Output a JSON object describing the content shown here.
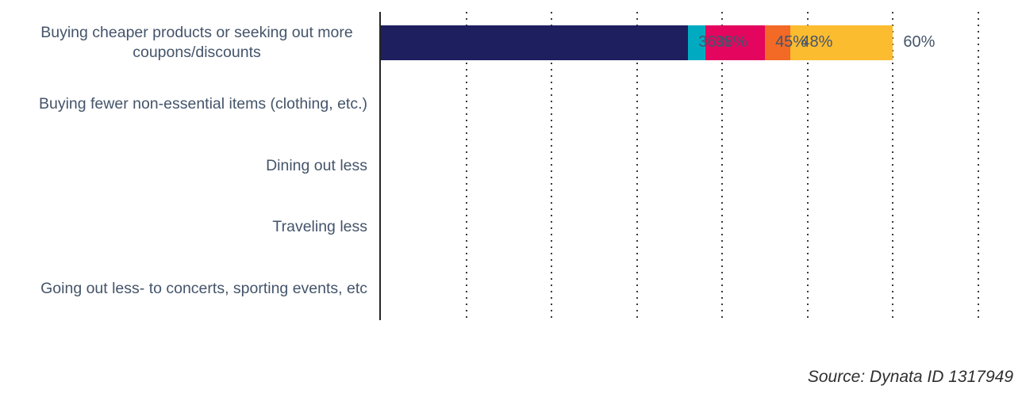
{
  "chart_data": {
    "type": "bar",
    "orientation": "horizontal",
    "title": "",
    "categories": [
      "Buying cheaper products or seeking out more coupons/discounts",
      "Buying fewer non-essential items (clothing, etc.)",
      "Dining out less",
      "Traveling less",
      "Going out less- to concerts, sporting events, etc"
    ],
    "values": [
      60,
      48,
      45,
      38,
      36
    ],
    "value_labels": [
      "60%",
      "48%",
      "45%",
      "38%",
      "36%"
    ],
    "bar_colors": [
      "#FBBC30",
      "#F26A26",
      "#E4055E",
      "#00ABC2",
      "#1E1F5E"
    ],
    "xlim": [
      0,
      70
    ],
    "gridline_step_percent": 10,
    "grid": "vertical-dotted",
    "legend": "none"
  },
  "footer": {
    "source_text": "Source: Dynata ID 1317949"
  },
  "colors": {
    "background": "#FFFFFF",
    "label_text": "#44546A",
    "value_text": "#44546A",
    "axis_line": "#262626",
    "gridline_dot": "#3A3A3A",
    "source_text": "#2F2F2F"
  }
}
